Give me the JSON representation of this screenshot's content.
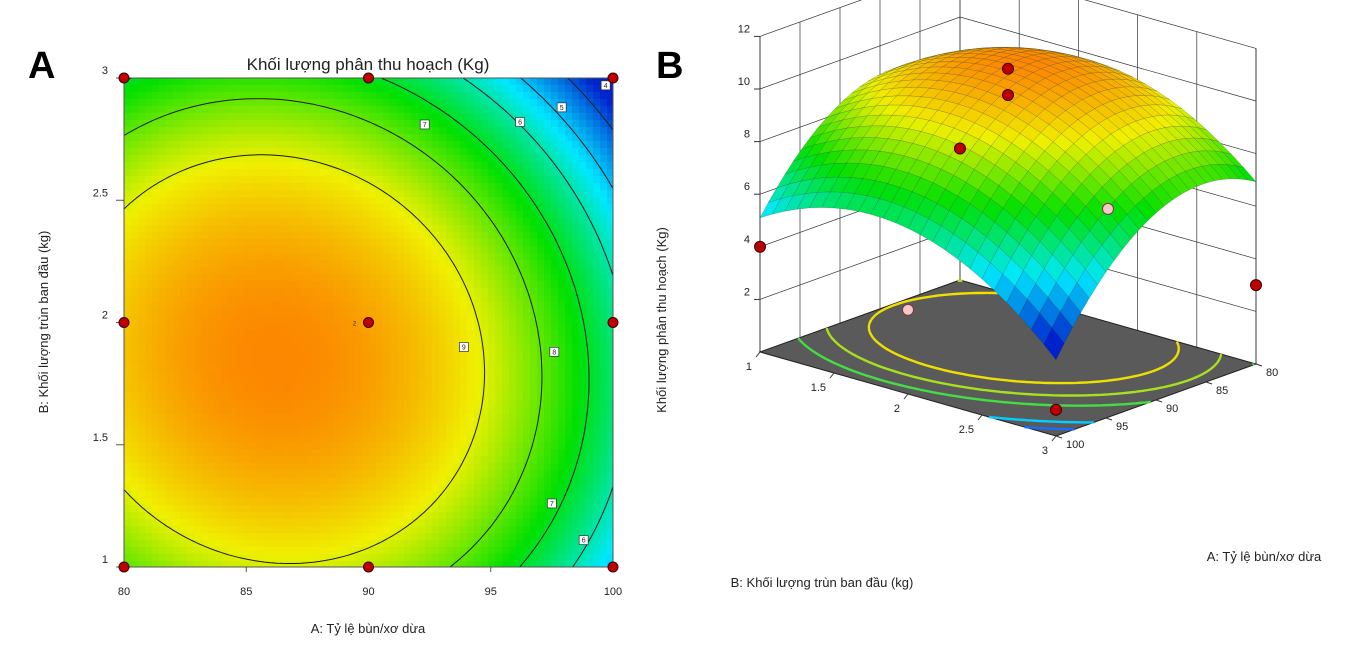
{
  "panels": {
    "a_label": "A",
    "b_label": "B"
  },
  "chart_data": [
    {
      "type": "contour",
      "title": "Khối lượng phân thu hoạch  (Kg)",
      "xlabel": "A: Tỷ lệ bùn/xơ dừa",
      "ylabel": "B: Khối lượng trùn ban đầu (kg)",
      "xlim": [
        80,
        100
      ],
      "ylim": [
        1,
        3
      ],
      "xticks": [
        "80",
        "85",
        "90",
        "95",
        "100"
      ],
      "yticks": [
        "1",
        "1.5",
        "2",
        "2.5",
        "3"
      ],
      "colormap": [
        "#0022cc",
        "#00e8ff",
        "#00e000",
        "#f0f000",
        "#ff6a00"
      ],
      "contour_levels": [
        4,
        5,
        6,
        7,
        8,
        9
      ],
      "contour_labels": [
        {
          "text": "4",
          "x": 99.7,
          "y": 2.97
        },
        {
          "text": "5",
          "x": 97.9,
          "y": 2.88
        },
        {
          "text": "6",
          "x": 96.2,
          "y": 2.82
        },
        {
          "text": "7",
          "x": 92.3,
          "y": 2.81
        },
        {
          "text": "9",
          "x": 93.9,
          "y": 1.9
        },
        {
          "text": "8",
          "x": 97.6,
          "y": 1.88
        },
        {
          "text": "7",
          "x": 97.5,
          "y": 1.26
        },
        {
          "text": "6",
          "x": 98.8,
          "y": 1.11
        }
      ],
      "design_points": [
        {
          "x": 80,
          "y": 1
        },
        {
          "x": 90,
          "y": 1
        },
        {
          "x": 100,
          "y": 1
        },
        {
          "x": 80,
          "y": 2
        },
        {
          "x": 90,
          "y": 2
        },
        {
          "x": 100,
          "y": 2
        },
        {
          "x": 80,
          "y": 3
        },
        {
          "x": 90,
          "y": 3
        },
        {
          "x": 100,
          "y": 3
        }
      ],
      "center_point_label": "2",
      "model_peak": {
        "x": 86.2,
        "y": 1.85,
        "value": 10.6
      }
    },
    {
      "type": "surface3d",
      "zlabel": "Khối lượng phân thu hoạch  (Kg)",
      "xlabel": "A: Tỷ lệ bùn/xơ dừa",
      "ylabel": "B: Khối lượng trùn ban đầu (kg)",
      "zlim": [
        0,
        12
      ],
      "zticks": [
        "2",
        "4",
        "6",
        "8",
        "10",
        "12"
      ],
      "a_ticks": [
        "80",
        "85",
        "90",
        "95",
        "100"
      ],
      "b_ticks": [
        "1",
        "1.5",
        "2",
        "2.5",
        "3"
      ],
      "floor_color": "#5a5a5a",
      "points": [
        {
          "a": 90,
          "b": 2,
          "z": 11
        },
        {
          "a": 90,
          "b": 2,
          "z": 10
        },
        {
          "a": 80,
          "b": 1,
          "z": 5
        },
        {
          "a": 80,
          "b": 3,
          "z": 3
        },
        {
          "a": 100,
          "b": 1,
          "z": 4
        },
        {
          "a": 100,
          "b": 3,
          "z": 1
        }
      ]
    }
  ]
}
